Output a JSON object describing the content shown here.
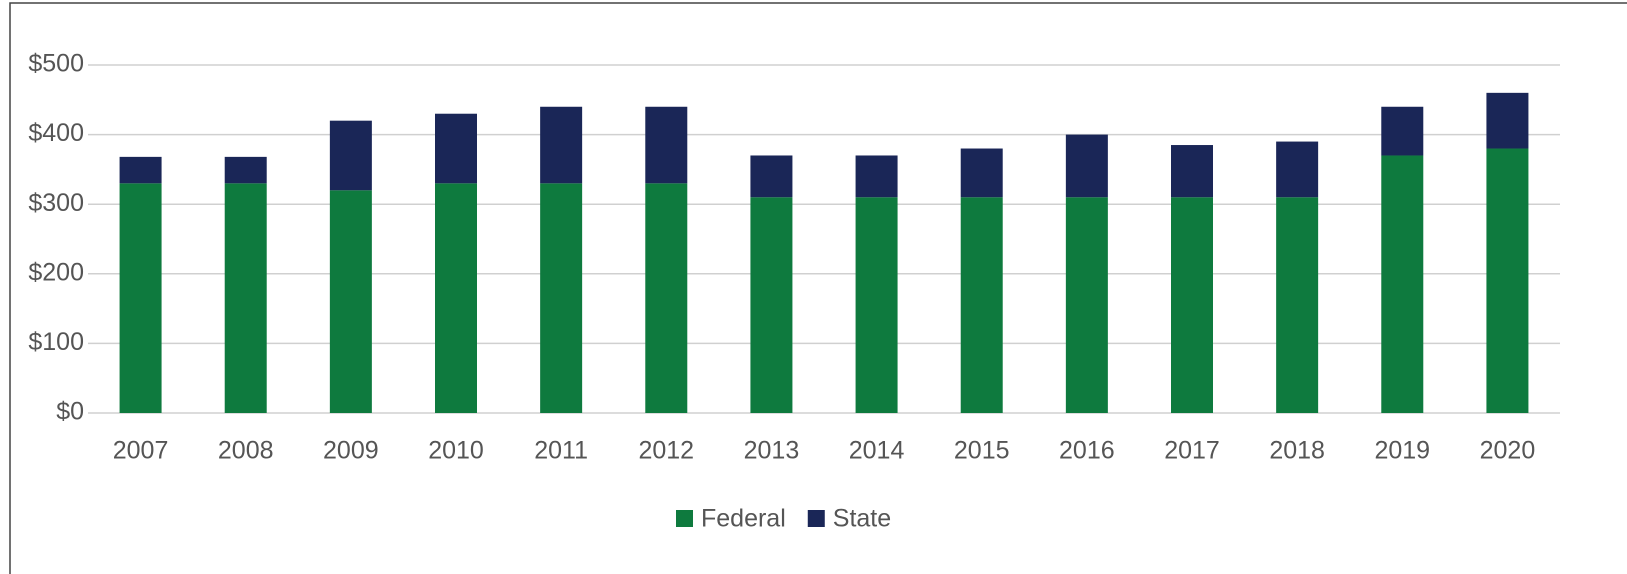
{
  "chart_data": {
    "type": "stacked_bar",
    "categories": [
      "2007",
      "2008",
      "2009",
      "2010",
      "2011",
      "2012",
      "2013",
      "2014",
      "2015",
      "2016",
      "2017",
      "2018",
      "2019",
      "2020"
    ],
    "series": [
      {
        "name": "Federal",
        "color": "#0e7a3e",
        "values": [
          330,
          330,
          320,
          330,
          330,
          330,
          310,
          310,
          310,
          310,
          310,
          310,
          370,
          380
        ]
      },
      {
        "name": "State",
        "color": "#1a2657",
        "values": [
          38,
          38,
          100,
          100,
          110,
          110,
          60,
          60,
          70,
          90,
          75,
          80,
          70,
          80
        ]
      }
    ],
    "ylim": [
      0,
      500
    ],
    "yticks": [
      {
        "value": 0,
        "label": "$0"
      },
      {
        "value": 100,
        "label": "$100"
      },
      {
        "value": 200,
        "label": "$200"
      },
      {
        "value": 300,
        "label": "$300"
      },
      {
        "value": 400,
        "label": "$400"
      },
      {
        "value": 500,
        "label": "$500"
      }
    ],
    "grid": true,
    "legend": "bottom"
  }
}
